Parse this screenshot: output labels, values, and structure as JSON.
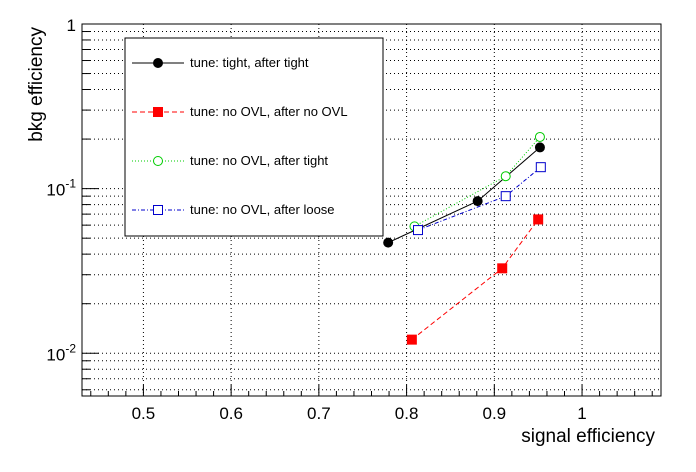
{
  "chart_data": {
    "type": "line",
    "xlabel": "signal efficiency",
    "ylabel": "bkg efficiency",
    "xlim": [
      0.43,
      1.09
    ],
    "ylim": [
      0.0055,
      1.0
    ],
    "yscale": "log",
    "grid": true,
    "legend_placement": "top-left",
    "x_ticks": [
      0.5,
      0.6,
      0.7,
      0.8,
      0.9,
      1.0
    ],
    "x_tick_labels": [
      "0.5",
      "0.6",
      "0.7",
      "0.8",
      "0.9",
      "1"
    ],
    "y_ticks": [
      {
        "value": 1,
        "base": "1",
        "exp": ""
      },
      {
        "value": 0.1,
        "base": "10",
        "exp": "-1"
      },
      {
        "value": 0.01,
        "base": "10",
        "exp": "-2"
      }
    ],
    "series": [
      {
        "name": "tune: tight, after tight",
        "color": "#000000",
        "marker": "filled-circle",
        "line": "solid",
        "x": [
          0.779,
          0.881,
          0.952
        ],
        "y": [
          0.047,
          0.084,
          0.178
        ]
      },
      {
        "name": "tune: no OVL, after no OVL",
        "color": "#ff0000",
        "marker": "filled-square",
        "line": "dashed",
        "x": [
          0.806,
          0.909,
          0.95
        ],
        "y": [
          0.0121,
          0.0328,
          0.065
        ]
      },
      {
        "name": "tune: no OVL, after tight",
        "color": "#00cc00",
        "marker": "open-circle",
        "line": "dotted",
        "x": [
          0.809,
          0.913,
          0.952
        ],
        "y": [
          0.059,
          0.119,
          0.206
        ]
      },
      {
        "name": "tune: no OVL, after loose",
        "color": "#0000cc",
        "marker": "open-square",
        "line": "dashdot",
        "x": [
          0.813,
          0.913,
          0.953
        ],
        "y": [
          0.056,
          0.09,
          0.135
        ]
      }
    ]
  }
}
